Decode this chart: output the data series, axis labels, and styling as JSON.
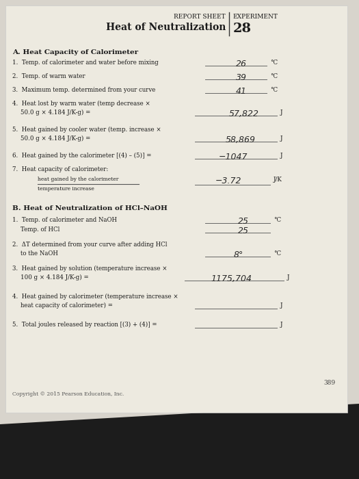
{
  "bg_color_top": "#d8d4cc",
  "bg_color_paper": "#edeae2",
  "dark_bottom_color": "#1a1a1a",
  "paper_color": "#ede9e0",
  "header_report": "REPORT SHEET",
  "header_experiment": "EXPERIMENT",
  "header_title": "Heat of Neutralization",
  "header_number": "28",
  "section_a_title": "A. Heat Capacity of Calorimeter",
  "fraction_label_num": "heat gained by the calorimeter",
  "fraction_label_den": "temperature increase",
  "section_b_title": "B. Heat of Neutralization of HCl–NaOH",
  "page_number": "389",
  "copyright": "Copyright © 2015 Pearson Education, Inc."
}
